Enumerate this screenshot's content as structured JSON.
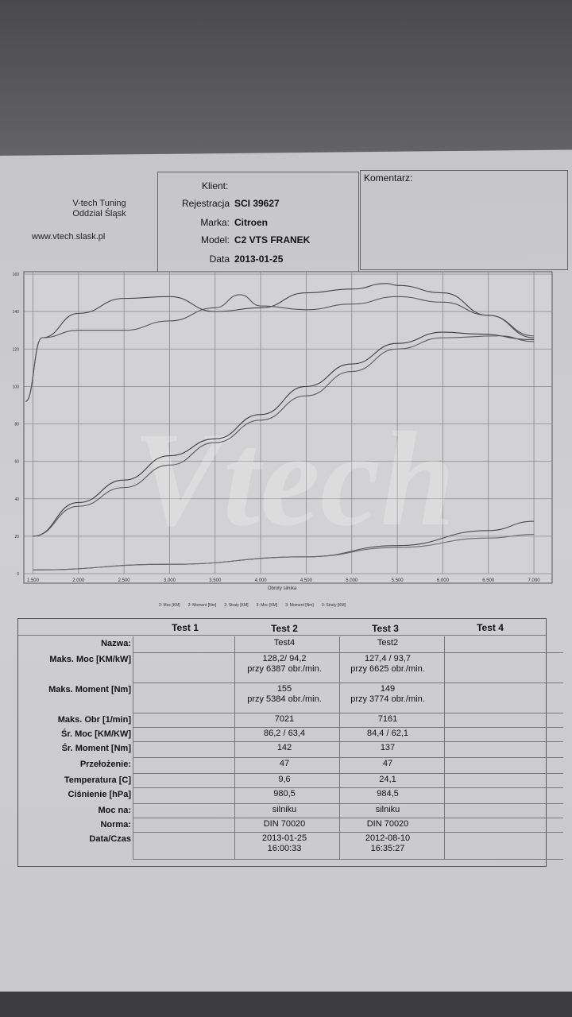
{
  "header": {
    "company_line1": "V-tech Tuning",
    "company_line2": "Oddział Śląsk",
    "website": "www.vtech.slask.pl"
  },
  "client": {
    "title": "Klient:",
    "registration_label": "Rejestracja",
    "registration": "SCI 39627",
    "make_label": "Marka:",
    "make": "Citroen",
    "model_label": "Model:",
    "model": "C2 VTS FRANEK",
    "date_label": "Data",
    "date": "2013-01-25"
  },
  "comment": {
    "label": "Komentarz:"
  },
  "watermark": "Vtech",
  "chart_data": {
    "type": "line",
    "xlabel": "Obroty silnika",
    "x_ticks": [
      "1.500",
      "2.000",
      "2.500",
      "3.000",
      "3.500",
      "4.000",
      "4.500",
      "5.000",
      "5.500",
      "6.000",
      "6.500",
      "7.000"
    ],
    "y_ticks": [
      "0",
      "20",
      "40",
      "60",
      "80",
      "100",
      "120",
      "140",
      "160"
    ],
    "xlim": [
      1400,
      7200
    ],
    "ylim": [
      0,
      160
    ],
    "series": [
      {
        "name": "2: Moc [KM]",
        "x": [
          1500,
          2000,
          2500,
          3000,
          3500,
          4000,
          4500,
          5000,
          5500,
          6000,
          6387,
          7000
        ],
        "y": [
          20,
          38,
          50,
          63,
          72,
          85,
          100,
          112,
          123,
          129,
          128,
          125
        ]
      },
      {
        "name": "2: Moment [Nm]",
        "x": [
          1420,
          1600,
          2000,
          2500,
          3000,
          3500,
          4000,
          4500,
          5000,
          5384,
          5500,
          6000,
          6500,
          7000
        ],
        "y": [
          92,
          126,
          139,
          147,
          148,
          140,
          142,
          150,
          152,
          155,
          154,
          150,
          138,
          126
        ]
      },
      {
        "name": "2: Straty [KM]",
        "x": [
          1500,
          3000,
          4500,
          5500,
          6500,
          7000
        ],
        "y": [
          2,
          5,
          9,
          15,
          23,
          28
        ]
      },
      {
        "name": "3: Moc [KM]",
        "x": [
          1500,
          2000,
          2500,
          3000,
          3500,
          4000,
          4500,
          5000,
          5500,
          6000,
          6625,
          7000
        ],
        "y": [
          20,
          36,
          46,
          58,
          70,
          82,
          95,
          108,
          120,
          126,
          127,
          124
        ]
      },
      {
        "name": "3: Moment [Nm]",
        "x": [
          1420,
          1600,
          2000,
          2500,
          3000,
          3500,
          3774,
          4000,
          4500,
          5000,
          5500,
          6000,
          6500,
          7000
        ],
        "y": [
          92,
          126,
          130,
          130,
          135,
          142,
          149,
          143,
          141,
          144,
          148,
          145,
          138,
          127
        ]
      },
      {
        "name": "3: Straty [KM]",
        "x": [
          1500,
          3000,
          4500,
          5500,
          6500,
          7000
        ],
        "y": [
          2,
          5,
          9,
          14,
          19,
          21
        ]
      }
    ]
  },
  "results": {
    "columns": [
      "Test 1",
      "Test 2",
      "Test 3",
      "Test 4"
    ],
    "rows": [
      {
        "label": "Nazwa:",
        "t2": "Test4",
        "t2b": "",
        "t3": "Test2",
        "t3b": ""
      },
      {
        "label": "Maks. Moc [KM/kW]",
        "t2": "128,2/ 94,2",
        "t2b": "przy 6387 obr./min.",
        "t3": "127,4 / 93,7",
        "t3b": "przy 6625 obr./min."
      },
      {
        "label": "Maks. Moment [Nm]",
        "t2": "155",
        "t2b": "przy 5384 obr./min.",
        "t3": "149",
        "t3b": "przy 3774 obr./min."
      },
      {
        "label": "Maks. Obr [1/min]",
        "t2": "7021",
        "t2b": "",
        "t3": "7161",
        "t3b": ""
      },
      {
        "label": "Śr. Moc [KM/KW]",
        "t2": "86,2 / 63,4",
        "t2b": "",
        "t3": "84,4 / 62,1",
        "t3b": ""
      },
      {
        "label": "Śr. Moment [Nm]",
        "t2": "142",
        "t2b": "",
        "t3": "137",
        "t3b": ""
      },
      {
        "label": "Przełożenie:",
        "t2": "47",
        "t2b": "",
        "t3": "47",
        "t3b": ""
      },
      {
        "label": "Temperatura [C]",
        "t2": "9,6",
        "t2b": "",
        "t3": "24,1",
        "t3b": ""
      },
      {
        "label": "Ciśnienie [hPa]",
        "t2": "980,5",
        "t2b": "",
        "t3": "984,5",
        "t3b": ""
      },
      {
        "label": "Moc na:",
        "t2": "silniku",
        "t2b": "",
        "t3": "silniku",
        "t3b": ""
      },
      {
        "label": "Norma:",
        "t2": "DIN 70020",
        "t2b": "",
        "t3": "DIN 70020",
        "t3b": ""
      },
      {
        "label": "Data/Czas",
        "t2": "2013-01-25",
        "t2b": "16:00:33",
        "t3": "2012-08-10",
        "t3b": "16:35:27"
      }
    ]
  }
}
